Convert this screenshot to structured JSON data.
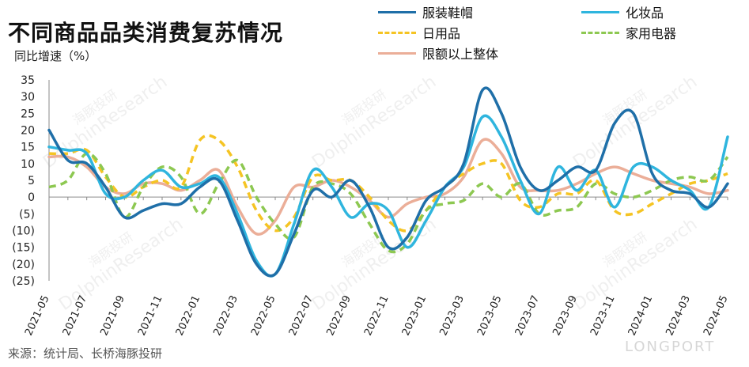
{
  "header": {
    "title": "不同商品品类消费复苏情况",
    "y_unit": "同比增速（%）"
  },
  "footer": {
    "source": "来源：统计局、长桥海豚投研"
  },
  "watermarks": [
    "海豚投研",
    "DolphinResearch",
    "LONGPORT"
  ],
  "legend": [
    {
      "name": "服装鞋帽",
      "color": "#1F6FA8",
      "style": "solid"
    },
    {
      "name": "化妆品",
      "color": "#2FB5DE",
      "style": "solid"
    },
    {
      "name": "日用品",
      "color": "#F5C423",
      "style": "dashed"
    },
    {
      "name": "家用电器",
      "color": "#8DC851",
      "style": "dashed"
    },
    {
      "name": "限额以上整体",
      "color": "#EBAE98",
      "style": "solid"
    }
  ],
  "chart_data": {
    "type": "line",
    "title": "不同商品品类消费复苏情况",
    "ylabel": "同比增速（%）",
    "ylim": [
      -25,
      35
    ],
    "y_ticks": [
      "35",
      "30",
      "25",
      "20",
      "15",
      "10",
      "5",
      "0",
      "(5)",
      "(10)",
      "(15)",
      "(20)",
      "(25)"
    ],
    "x_tick_labels": [
      "2021-05",
      "2021-07",
      "2021-09",
      "2021-11",
      "2022-01",
      "2022-03",
      "2022-05",
      "2022-07",
      "2022-09",
      "2022-11",
      "2023-01",
      "2023-03",
      "2023-05",
      "2023-07",
      "2023-09",
      "2023-11",
      "2024-01",
      "2024-03",
      "2024-05"
    ],
    "x": [
      "2021-05",
      "2021-06",
      "2021-07",
      "2021-08",
      "2021-09",
      "2021-10",
      "2021-11",
      "2021-12",
      "2022-01",
      "2022-02",
      "2022-03",
      "2022-04",
      "2022-05",
      "2022-06",
      "2022-07",
      "2022-08",
      "2022-09",
      "2022-10",
      "2022-11",
      "2022-12",
      "2023-01",
      "2023-02",
      "2023-03",
      "2023-04",
      "2023-05",
      "2023-06",
      "2023-07",
      "2023-08",
      "2023-09",
      "2023-10",
      "2023-11",
      "2023-12",
      "2024-01",
      "2024-02",
      "2024-03",
      "2024-04",
      "2024-05"
    ],
    "series": [
      {
        "name": "服装鞋帽",
        "values": [
          20,
          11,
          10,
          3,
          -6,
          -4,
          -2,
          -2,
          3,
          5,
          -7,
          -20,
          -23,
          -11,
          2,
          0,
          5,
          -3,
          -15,
          -12,
          -1,
          3,
          10,
          32,
          25,
          9,
          2,
          5,
          9,
          8,
          22,
          25,
          7,
          2,
          1,
          -3,
          4
        ]
      },
      {
        "name": "化妆品",
        "values": [
          15,
          14,
          13,
          1,
          0,
          5,
          8,
          3,
          4,
          6,
          -5,
          -19,
          -23,
          -8,
          8,
          3,
          -6,
          -2,
          -4,
          -15,
          -7,
          3,
          9,
          24,
          18,
          5,
          -5,
          9,
          2,
          8,
          -3,
          9,
          9,
          5,
          2,
          -3,
          18
        ]
      },
      {
        "name": "日用品",
        "values": [
          13,
          13,
          14,
          6,
          0,
          3,
          5,
          3,
          17,
          17,
          9,
          -4,
          -10,
          -6,
          6,
          5,
          5,
          0,
          -7,
          -10,
          -4,
          3,
          7,
          10,
          10,
          -1,
          -3,
          1,
          1,
          5,
          -4,
          -5,
          -2,
          1,
          4,
          5,
          7
        ]
      },
      {
        "name": "家用电器",
        "values": [
          3,
          5,
          13,
          7,
          -6,
          3,
          9,
          6,
          -5,
          4,
          11,
          0,
          -8,
          -12,
          3,
          4,
          1,
          -8,
          -16,
          -14,
          -4,
          -2,
          -1,
          4,
          0,
          4,
          -5,
          -4,
          -3,
          4,
          1,
          0,
          2,
          5,
          6,
          5,
          12
        ]
      },
      {
        "name": "限额以上整体",
        "values": [
          12,
          12,
          9,
          3,
          1,
          4,
          4,
          2,
          5,
          8,
          -3,
          -11,
          -7,
          3,
          3,
          5,
          3,
          -1,
          -6,
          -2,
          0,
          1,
          6,
          17,
          13,
          3,
          2,
          2,
          4,
          7,
          9,
          7,
          5,
          4,
          3,
          1,
          2
        ]
      }
    ]
  }
}
